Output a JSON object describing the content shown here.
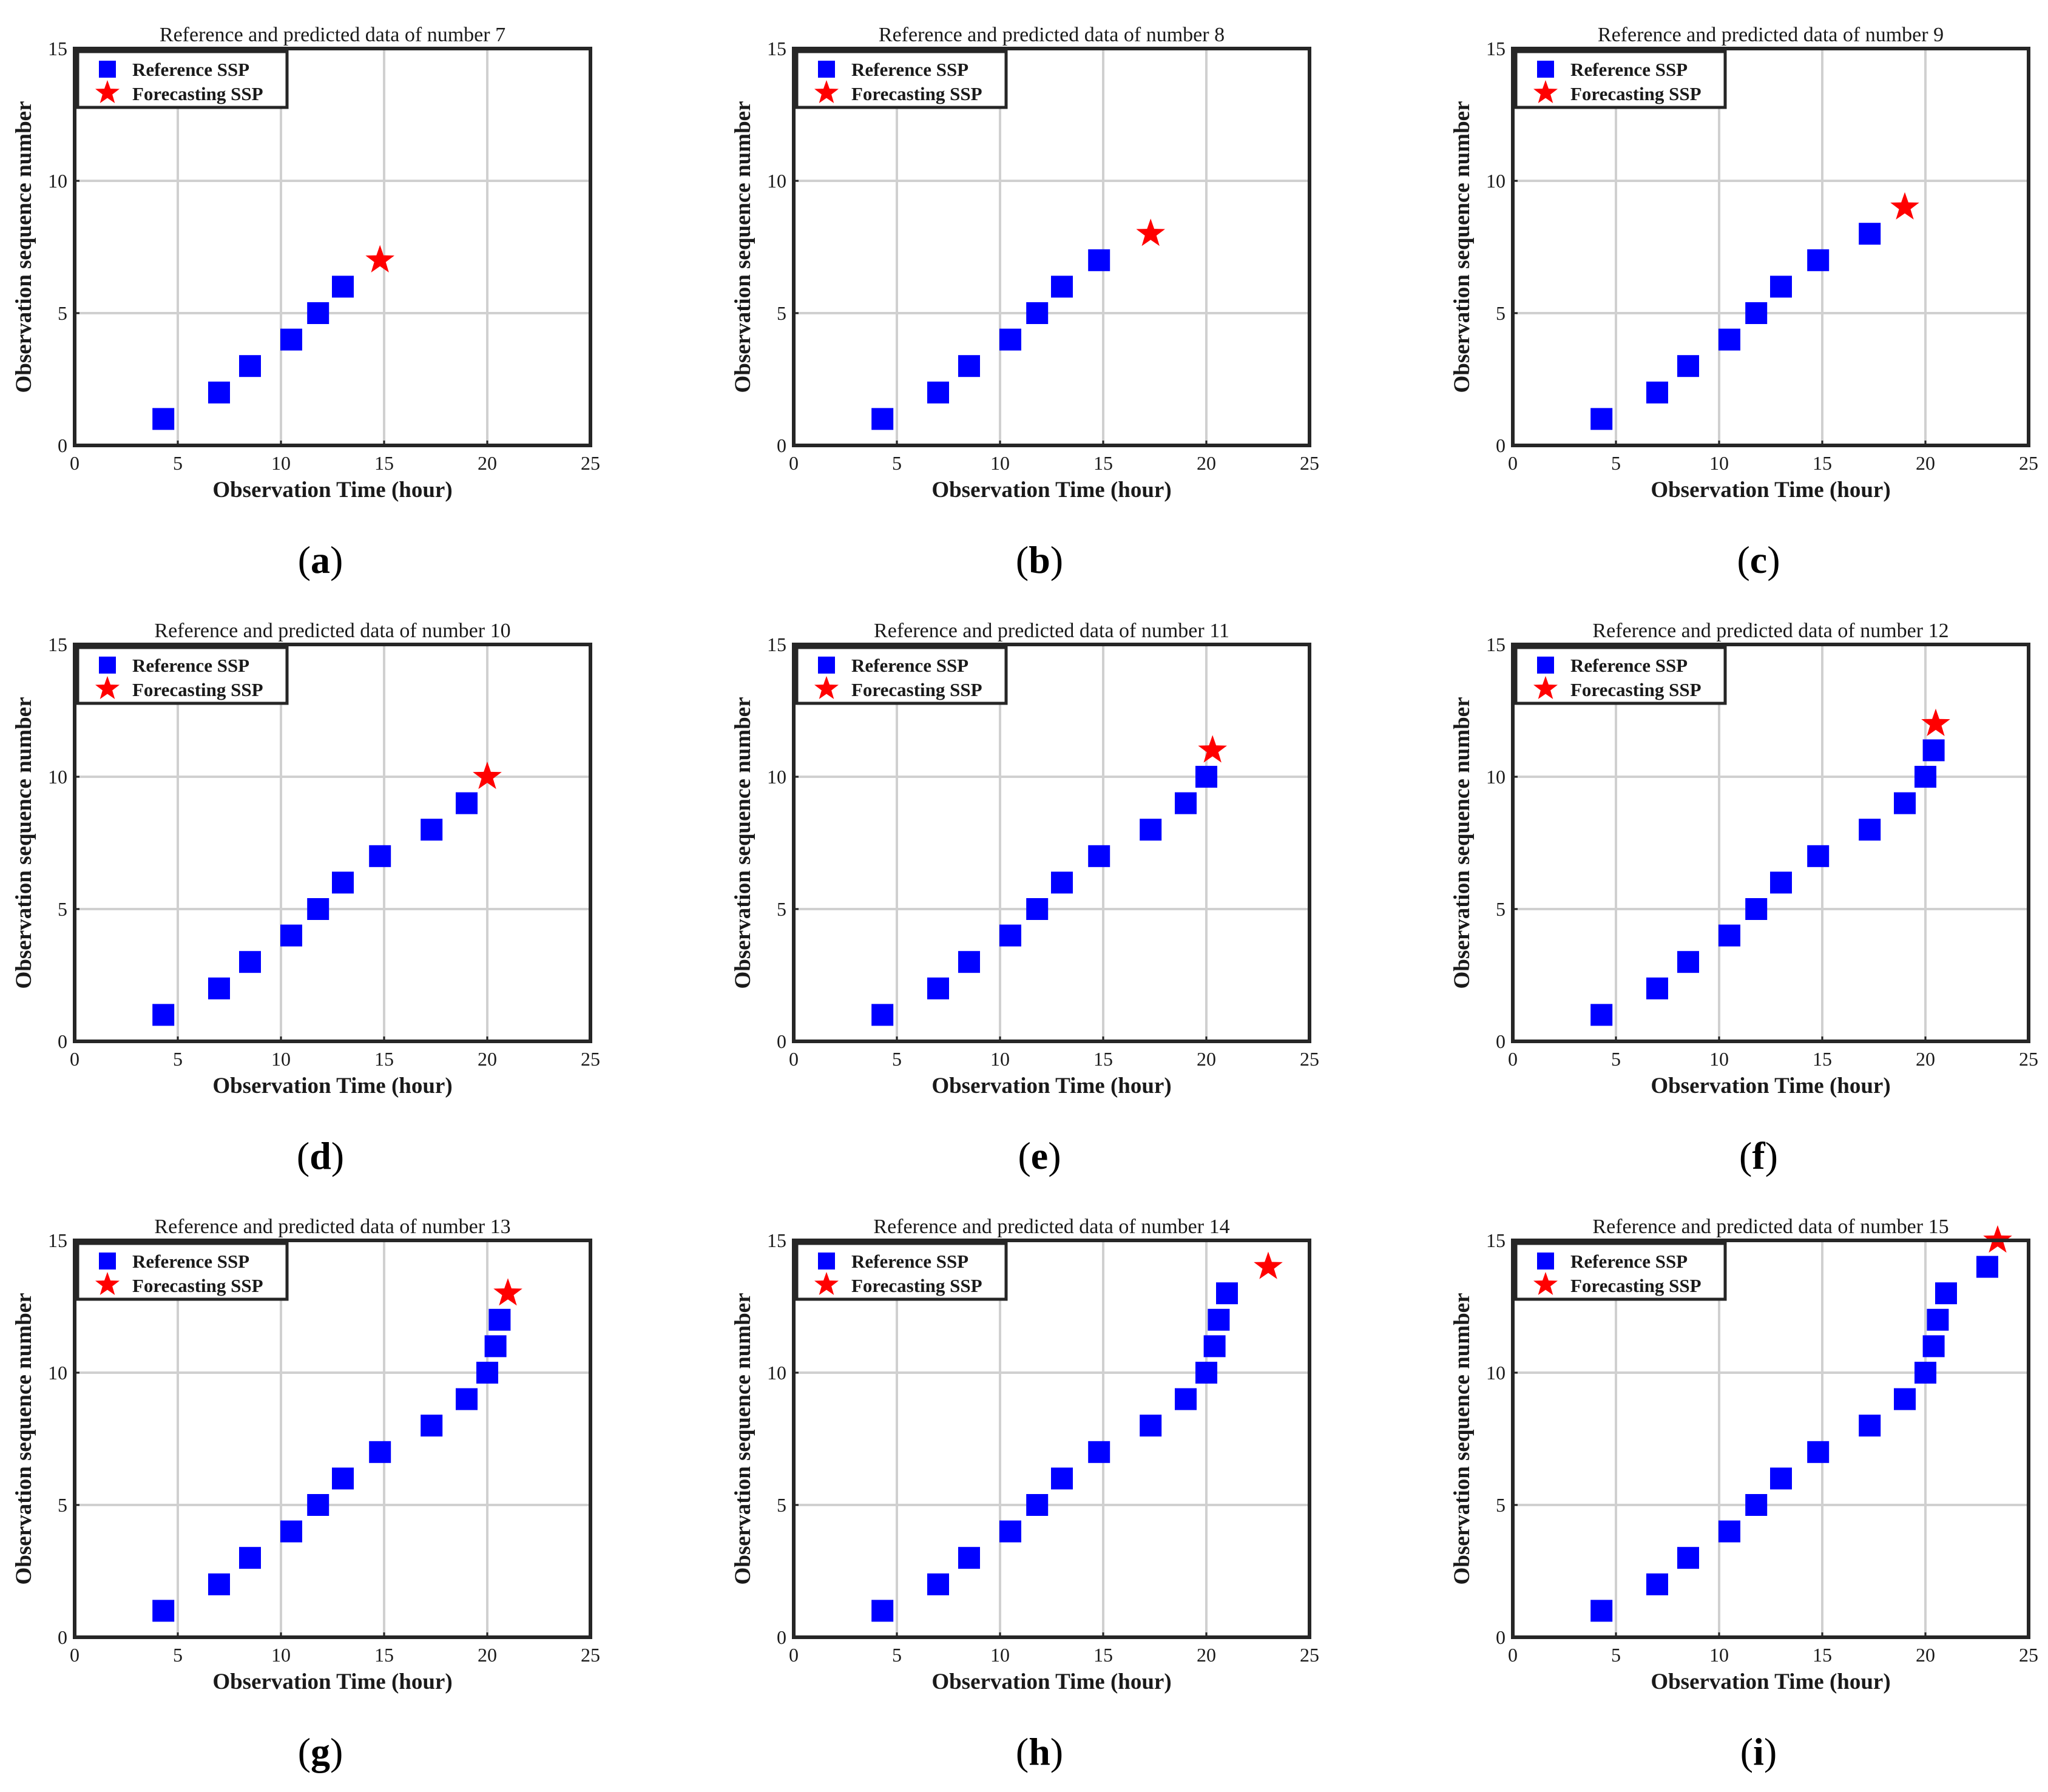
{
  "figure": {
    "reference_color": "#0000ff",
    "forecast_color": "#ff0000",
    "grid_color": "#d0d0d0"
  },
  "chart_data": [
    {
      "type": "scatter",
      "panel_label": "a",
      "title": "Reference and predicted data of number 7",
      "xlabel": "Observation Time (hour)",
      "ylabel": "Observation sequence number",
      "xlim": [
        0,
        25
      ],
      "ylim": [
        0,
        15
      ],
      "xticks": [
        "0",
        "5",
        "10",
        "15",
        "20",
        "25"
      ],
      "yticks": [
        "0",
        "5",
        "10",
        "15"
      ],
      "legend": [
        "Reference SSP",
        "Forecasting SSP"
      ],
      "legend_position": "top-left",
      "series": [
        {
          "name": "Reference SSP",
          "marker": "square",
          "x": [
            4.3,
            7.0,
            8.5,
            10.5,
            11.8,
            13.0
          ],
          "y": [
            1,
            2,
            3,
            4,
            5,
            6
          ]
        },
        {
          "name": "Forecasting SSP",
          "marker": "star",
          "x": [
            14.8
          ],
          "y": [
            7
          ]
        }
      ]
    },
    {
      "type": "scatter",
      "panel_label": "b",
      "title": "Reference and predicted data of number 8",
      "xlabel": "Observation Time (hour)",
      "ylabel": "Observation sequence number",
      "xlim": [
        0,
        25
      ],
      "ylim": [
        0,
        15
      ],
      "xticks": [
        "0",
        "5",
        "10",
        "15",
        "20",
        "25"
      ],
      "yticks": [
        "0",
        "5",
        "10",
        "15"
      ],
      "legend": [
        "Reference SSP",
        "Forecasting SSP"
      ],
      "legend_position": "top-left",
      "series": [
        {
          "name": "Reference SSP",
          "marker": "square",
          "x": [
            4.3,
            7.0,
            8.5,
            10.5,
            11.8,
            13.0,
            14.8
          ],
          "y": [
            1,
            2,
            3,
            4,
            5,
            6,
            7
          ]
        },
        {
          "name": "Forecasting SSP",
          "marker": "star",
          "x": [
            17.3
          ],
          "y": [
            8
          ]
        }
      ]
    },
    {
      "type": "scatter",
      "panel_label": "c",
      "title": "Reference and predicted data of number 9",
      "xlabel": "Observation Time (hour)",
      "ylabel": "Observation sequence number",
      "xlim": [
        0,
        25
      ],
      "ylim": [
        0,
        15
      ],
      "xticks": [
        "0",
        "5",
        "10",
        "15",
        "20",
        "25"
      ],
      "yticks": [
        "0",
        "5",
        "10",
        "15"
      ],
      "legend": [
        "Reference SSP",
        "Forecasting SSP"
      ],
      "legend_position": "top-left",
      "series": [
        {
          "name": "Reference SSP",
          "marker": "square",
          "x": [
            4.3,
            7.0,
            8.5,
            10.5,
            11.8,
            13.0,
            14.8,
            17.3
          ],
          "y": [
            1,
            2,
            3,
            4,
            5,
            6,
            7,
            8
          ]
        },
        {
          "name": "Forecasting SSP",
          "marker": "star",
          "x": [
            19.0
          ],
          "y": [
            9
          ]
        }
      ]
    },
    {
      "type": "scatter",
      "panel_label": "d",
      "title": "Reference and predicted data of number 10",
      "xlabel": "Observation Time (hour)",
      "ylabel": "Observation sequence number",
      "xlim": [
        0,
        25
      ],
      "ylim": [
        0,
        15
      ],
      "xticks": [
        "0",
        "5",
        "10",
        "15",
        "20",
        "25"
      ],
      "yticks": [
        "0",
        "5",
        "10",
        "15"
      ],
      "legend": [
        "Reference SSP",
        "Forecasting SSP"
      ],
      "legend_position": "top-left",
      "series": [
        {
          "name": "Reference SSP",
          "marker": "square",
          "x": [
            4.3,
            7.0,
            8.5,
            10.5,
            11.8,
            13.0,
            14.8,
            17.3,
            19.0
          ],
          "y": [
            1,
            2,
            3,
            4,
            5,
            6,
            7,
            8,
            9
          ]
        },
        {
          "name": "Forecasting SSP",
          "marker": "star",
          "x": [
            20.0
          ],
          "y": [
            10
          ]
        }
      ]
    },
    {
      "type": "scatter",
      "panel_label": "e",
      "title": "Reference and predicted data of number 11",
      "xlabel": "Observation Time (hour)",
      "ylabel": "Observation sequence number",
      "xlim": [
        0,
        25
      ],
      "ylim": [
        0,
        15
      ],
      "xticks": [
        "0",
        "5",
        "10",
        "15",
        "20",
        "25"
      ],
      "yticks": [
        "0",
        "5",
        "10",
        "15"
      ],
      "legend": [
        "Reference SSP",
        "Forecasting SSP"
      ],
      "legend_position": "top-left",
      "series": [
        {
          "name": "Reference SSP",
          "marker": "square",
          "x": [
            4.3,
            7.0,
            8.5,
            10.5,
            11.8,
            13.0,
            14.8,
            17.3,
            19.0,
            20.0
          ],
          "y": [
            1,
            2,
            3,
            4,
            5,
            6,
            7,
            8,
            9,
            10
          ]
        },
        {
          "name": "Forecasting SSP",
          "marker": "star",
          "x": [
            20.3
          ],
          "y": [
            11
          ]
        }
      ]
    },
    {
      "type": "scatter",
      "panel_label": "f",
      "title": "Reference and predicted data of number 12",
      "xlabel": "Observation Time (hour)",
      "ylabel": "Observation sequence number",
      "xlim": [
        0,
        25
      ],
      "ylim": [
        0,
        15
      ],
      "xticks": [
        "0",
        "5",
        "10",
        "15",
        "20",
        "25"
      ],
      "yticks": [
        "0",
        "5",
        "10",
        "15"
      ],
      "legend": [
        "Reference SSP",
        "Forecasting SSP"
      ],
      "legend_position": "top-left",
      "series": [
        {
          "name": "Reference SSP",
          "marker": "square",
          "x": [
            4.3,
            7.0,
            8.5,
            10.5,
            11.8,
            13.0,
            14.8,
            17.3,
            19.0,
            20.0,
            20.4
          ],
          "y": [
            1,
            2,
            3,
            4,
            5,
            6,
            7,
            8,
            9,
            10,
            11
          ]
        },
        {
          "name": "Forecasting SSP",
          "marker": "star",
          "x": [
            20.5
          ],
          "y": [
            12
          ]
        }
      ]
    },
    {
      "type": "scatter",
      "panel_label": "g",
      "title": "Reference and predicted data of number 13",
      "xlabel": "Observation Time (hour)",
      "ylabel": "Observation sequence number",
      "xlim": [
        0,
        25
      ],
      "ylim": [
        0,
        15
      ],
      "xticks": [
        "0",
        "5",
        "10",
        "15",
        "20",
        "25"
      ],
      "yticks": [
        "0",
        "5",
        "10",
        "15"
      ],
      "legend": [
        "Reference SSP",
        "Forecasting SSP"
      ],
      "legend_position": "top-left",
      "series": [
        {
          "name": "Reference SSP",
          "marker": "square",
          "x": [
            4.3,
            7.0,
            8.5,
            10.5,
            11.8,
            13.0,
            14.8,
            17.3,
            19.0,
            20.0,
            20.4,
            20.6
          ],
          "y": [
            1,
            2,
            3,
            4,
            5,
            6,
            7,
            8,
            9,
            10,
            11,
            12
          ]
        },
        {
          "name": "Forecasting SSP",
          "marker": "star",
          "x": [
            21.0
          ],
          "y": [
            13
          ]
        }
      ]
    },
    {
      "type": "scatter",
      "panel_label": "h",
      "title": "Reference and predicted data of number 14",
      "xlabel": "Observation Time (hour)",
      "ylabel": "Observation sequence number",
      "xlim": [
        0,
        25
      ],
      "ylim": [
        0,
        15
      ],
      "xticks": [
        "0",
        "5",
        "10",
        "15",
        "20",
        "25"
      ],
      "yticks": [
        "0",
        "5",
        "10",
        "15"
      ],
      "legend": [
        "Reference SSP",
        "Forecasting SSP"
      ],
      "legend_position": "top-left",
      "series": [
        {
          "name": "Reference SSP",
          "marker": "square",
          "x": [
            4.3,
            7.0,
            8.5,
            10.5,
            11.8,
            13.0,
            14.8,
            17.3,
            19.0,
            20.0,
            20.4,
            20.6,
            21.0
          ],
          "y": [
            1,
            2,
            3,
            4,
            5,
            6,
            7,
            8,
            9,
            10,
            11,
            12,
            13
          ]
        },
        {
          "name": "Forecasting SSP",
          "marker": "star",
          "x": [
            23.0
          ],
          "y": [
            14
          ]
        }
      ]
    },
    {
      "type": "scatter",
      "panel_label": "i",
      "title": "Reference and predicted data of number 15",
      "xlabel": "Observation Time (hour)",
      "ylabel": "Observation sequence number",
      "xlim": [
        0,
        25
      ],
      "ylim": [
        0,
        15
      ],
      "xticks": [
        "0",
        "5",
        "10",
        "15",
        "20",
        "25"
      ],
      "yticks": [
        "0",
        "5",
        "10",
        "15"
      ],
      "legend": [
        "Reference SSP",
        "Forecasting SSP"
      ],
      "legend_position": "top-left",
      "series": [
        {
          "name": "Reference SSP",
          "marker": "square",
          "x": [
            4.3,
            7.0,
            8.5,
            10.5,
            11.8,
            13.0,
            14.8,
            17.3,
            19.0,
            20.0,
            20.4,
            20.6,
            21.0,
            23.0
          ],
          "y": [
            1,
            2,
            3,
            4,
            5,
            6,
            7,
            8,
            9,
            10,
            11,
            12,
            13,
            14
          ]
        },
        {
          "name": "Forecasting SSP",
          "marker": "star",
          "x": [
            23.5
          ],
          "y": [
            15
          ]
        }
      ]
    }
  ]
}
